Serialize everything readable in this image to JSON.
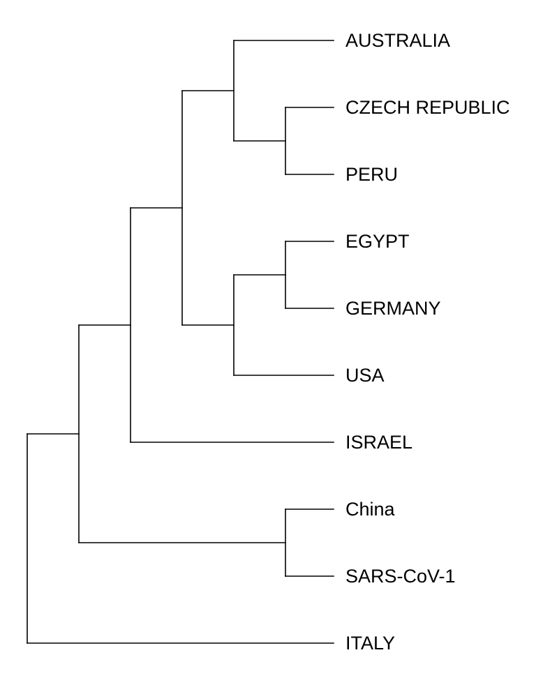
{
  "tree": {
    "type": "dendrogram",
    "leaves": [
      "AUSTRALIA",
      "CZECH REPUBLIC",
      "PERU",
      "EGYPT",
      "GERMANY",
      "USA",
      "ISRAEL",
      "China",
      "SARS-CoV-1",
      "ITALY"
    ],
    "clusters": [
      {
        "id": "n1",
        "children": [
          "CZECH REPUBLIC",
          "PERU"
        ]
      },
      {
        "id": "n2",
        "children": [
          "AUSTRALIA",
          "n1"
        ]
      },
      {
        "id": "n3",
        "children": [
          "EGYPT",
          "GERMANY"
        ]
      },
      {
        "id": "n4",
        "children": [
          "n3",
          "USA"
        ]
      },
      {
        "id": "n5",
        "children": [
          "n2",
          "n4"
        ]
      },
      {
        "id": "n6",
        "children": [
          "n5",
          "ISRAEL"
        ]
      },
      {
        "id": "n7",
        "children": [
          "China",
          "SARS-CoV-1"
        ]
      },
      {
        "id": "n8",
        "children": [
          "n6",
          "n7"
        ]
      },
      {
        "id": "root",
        "children": [
          "n8",
          "ITALY"
        ]
      }
    ]
  }
}
